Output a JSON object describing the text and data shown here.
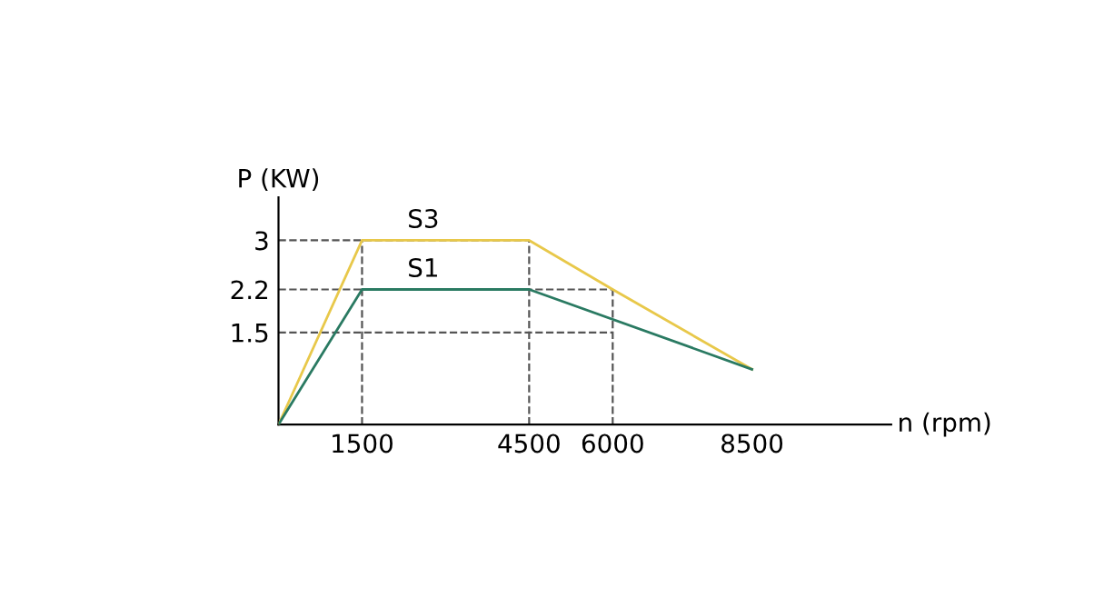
{
  "chart_data": {
    "type": "line",
    "xlabel": "n (rpm)",
    "ylabel": "P (KW)",
    "series": [
      {
        "name": "S3",
        "color": "#e8c84a",
        "x": [
          0,
          1500,
          4500,
          6000,
          8500
        ],
        "values": [
          0,
          3,
          3,
          2.2,
          0.9
        ]
      },
      {
        "name": "S1",
        "color": "#2a7a62",
        "x": [
          0,
          1500,
          4500,
          8500
        ],
        "values": [
          0,
          2.2,
          2.2,
          0.9
        ]
      }
    ],
    "xlim": [
      0,
      11000
    ],
    "ylim": [
      0,
      3.7
    ],
    "xticks": [
      1500,
      4500,
      6000,
      8500
    ],
    "yticks": [
      1.5,
      2.2,
      3
    ],
    "ref_lines": [
      {
        "axis": "y",
        "value": 3,
        "line_style": "dashed"
      },
      {
        "axis": "y",
        "value": 2.2,
        "line_style": "dashed"
      },
      {
        "axis": "y",
        "value": 1.5,
        "line_style": "dashed"
      },
      {
        "axis": "x",
        "value": 1500,
        "line_style": "dashed"
      },
      {
        "axis": "x",
        "value": 4500,
        "line_style": "dashed"
      },
      {
        "axis": "x",
        "value": 6000,
        "line_style": "dashed"
      }
    ],
    "grid": false,
    "legend": false,
    "marker": "none",
    "line_style": "solid"
  }
}
